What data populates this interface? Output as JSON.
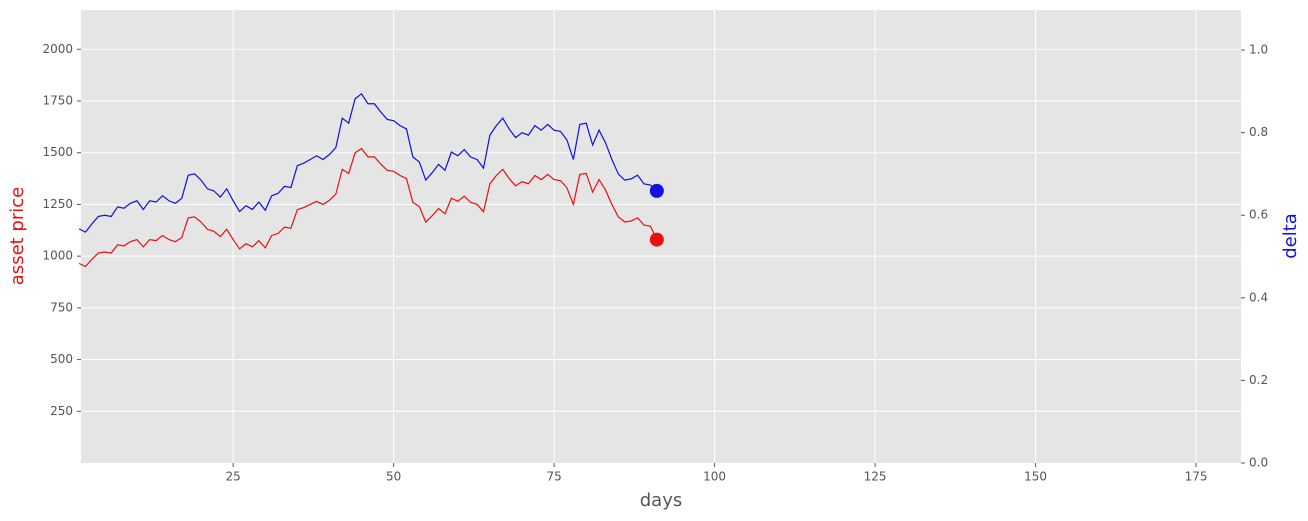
{
  "chart_data": {
    "type": "line",
    "xlabel": "days",
    "ylabel": "asset price",
    "y2label": "delta",
    "ylabel_color": "#e8110f",
    "y2label_color": "#1010e0",
    "background": "#e5e5e5",
    "grid": true,
    "xlim": [
      1.3,
      182
    ],
    "xticks": [
      25,
      50,
      75,
      100,
      125,
      150,
      175
    ],
    "ylim": [
      0,
      2190
    ],
    "yticks": [
      250,
      500,
      750,
      1000,
      1250,
      1500,
      1750,
      2000
    ],
    "y2lim": [
      0,
      1.097
    ],
    "y2ticks": [
      {
        "value": 0,
        "label": "0.0"
      },
      0.2,
      0.4,
      0.6,
      0.8,
      {
        "value": 1,
        "label": "1.0"
      }
    ],
    "x": [
      1,
      2,
      3,
      4,
      5,
      6,
      7,
      8,
      9,
      10,
      11,
      12,
      13,
      14,
      15,
      16,
      17,
      18,
      19,
      20,
      21,
      22,
      23,
      24,
      25,
      26,
      27,
      28,
      29,
      30,
      31,
      32,
      33,
      34,
      35,
      36,
      37,
      38,
      39,
      40,
      41,
      42,
      43,
      44,
      45,
      46,
      47,
      48,
      49,
      50,
      51,
      52,
      53,
      54,
      55,
      56,
      57,
      58,
      59,
      60,
      61,
      62,
      63,
      64,
      65,
      66,
      67,
      68,
      69,
      70,
      71,
      72,
      73,
      74,
      75,
      76,
      77,
      78,
      79,
      80,
      81,
      82,
      83,
      84,
      85,
      86,
      87,
      88,
      89,
      90,
      91
    ],
    "series": [
      {
        "color": "#e8110f",
        "axis": "y",
        "values": [
          965,
          950,
          985,
          1015,
          1020,
          1015,
          1055,
          1050,
          1070,
          1080,
          1045,
          1080,
          1075,
          1100,
          1080,
          1070,
          1090,
          1185,
          1190,
          1165,
          1130,
          1120,
          1095,
          1130,
          1080,
          1035,
          1060,
          1045,
          1075,
          1040,
          1100,
          1110,
          1140,
          1135,
          1225,
          1235,
          1250,
          1265,
          1250,
          1270,
          1300,
          1420,
          1400,
          1500,
          1520,
          1480,
          1480,
          1445,
          1415,
          1410,
          1390,
          1375,
          1260,
          1240,
          1165,
          1195,
          1230,
          1205,
          1280,
          1265,
          1290,
          1260,
          1250,
          1215,
          1350,
          1390,
          1420,
          1375,
          1340,
          1360,
          1350,
          1390,
          1370,
          1395,
          1370,
          1365,
          1330,
          1250,
          1395,
          1400,
          1310,
          1370,
          1320,
          1250,
          1190,
          1165,
          1170,
          1185,
          1150,
          1145,
          1080
        ]
      },
      {
        "color": "#1010e0",
        "axis": "y2",
        "values": [
          0.567,
          0.559,
          0.579,
          0.597,
          0.6,
          0.597,
          0.62,
          0.617,
          0.629,
          0.635,
          0.614,
          0.635,
          0.632,
          0.647,
          0.635,
          0.629,
          0.641,
          0.697,
          0.7,
          0.685,
          0.664,
          0.659,
          0.644,
          0.664,
          0.635,
          0.609,
          0.623,
          0.614,
          0.632,
          0.612,
          0.647,
          0.653,
          0.67,
          0.667,
          0.72,
          0.726,
          0.735,
          0.744,
          0.735,
          0.747,
          0.764,
          0.835,
          0.823,
          0.882,
          0.894,
          0.87,
          0.87,
          0.85,
          0.832,
          0.829,
          0.817,
          0.809,
          0.741,
          0.729,
          0.685,
          0.703,
          0.723,
          0.709,
          0.753,
          0.744,
          0.759,
          0.741,
          0.735,
          0.714,
          0.794,
          0.817,
          0.835,
          0.809,
          0.788,
          0.8,
          0.794,
          0.817,
          0.806,
          0.82,
          0.806,
          0.803,
          0.782,
          0.735,
          0.82,
          0.823,
          0.77,
          0.806,
          0.776,
          0.735,
          0.7,
          0.685,
          0.688,
          0.697,
          0.676,
          0.673,
          0.659
        ]
      }
    ]
  }
}
